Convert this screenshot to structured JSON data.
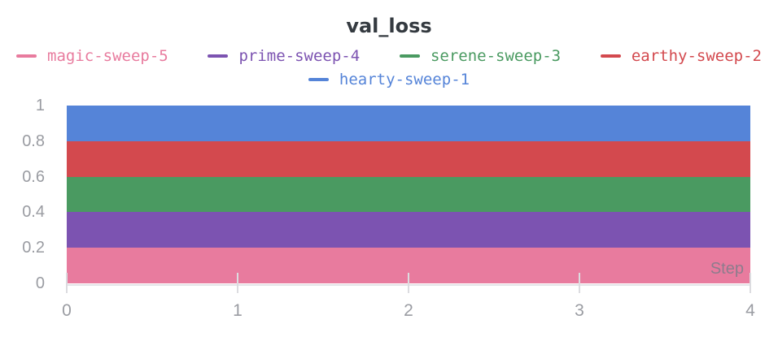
{
  "panel": {
    "title": "val_loss",
    "x_axis_label": "Step"
  },
  "legend": {
    "items": [
      {
        "label": "magic-sweep-5",
        "color": "#E87B9E"
      },
      {
        "label": "prime-sweep-4",
        "color": "#7C53B1"
      },
      {
        "label": "serene-sweep-3",
        "color": "#4A9A61"
      },
      {
        "label": "earthy-sweep-2",
        "color": "#D3494E"
      },
      {
        "label": "hearty-sweep-1",
        "color": "#5584D8"
      }
    ]
  },
  "axes": {
    "y_ticks": [
      "1",
      "0.8",
      "0.6",
      "0.4",
      "0.2",
      "0"
    ],
    "x_ticks": [
      "0",
      "1",
      "2",
      "3",
      "4"
    ]
  },
  "chart_data": {
    "type": "area",
    "title": "val_loss",
    "xlabel": "Step",
    "ylabel": "",
    "x": [
      0,
      1,
      2,
      3,
      4
    ],
    "xlim": [
      0,
      4
    ],
    "ylim": [
      0,
      1
    ],
    "grid": false,
    "legend_position": "top",
    "series": [
      {
        "name": "hearty-sweep-1",
        "color": "#5584D8",
        "values": [
          1.0,
          1.0,
          1.0,
          1.0,
          1.0
        ]
      },
      {
        "name": "earthy-sweep-2",
        "color": "#D3494E",
        "values": [
          0.8,
          0.8,
          0.8,
          0.8,
          0.8
        ]
      },
      {
        "name": "serene-sweep-3",
        "color": "#4A9A61",
        "values": [
          0.6,
          0.6,
          0.6,
          0.6,
          0.6
        ]
      },
      {
        "name": "prime-sweep-4",
        "color": "#7C53B1",
        "values": [
          0.4,
          0.4,
          0.4,
          0.4,
          0.4
        ]
      },
      {
        "name": "magic-sweep-5",
        "color": "#E87B9E",
        "values": [
          0.2,
          0.2,
          0.2,
          0.2,
          0.2
        ]
      }
    ]
  }
}
